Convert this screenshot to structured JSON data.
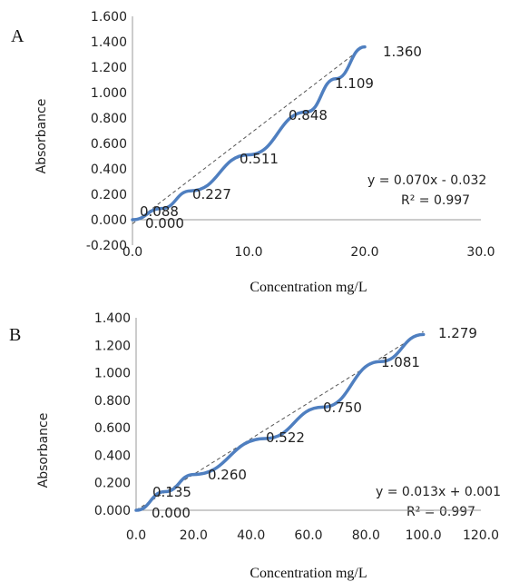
{
  "chart_data": [
    {
      "type": "line",
      "panel_label": "A",
      "xlabel": "Concentration mg/L",
      "ylabel": "Absorbance",
      "x": [
        0.0,
        2.5,
        5.0,
        10.0,
        15.0,
        17.5,
        20.0
      ],
      "values": [
        0.0,
        0.088,
        0.227,
        0.511,
        0.848,
        1.109,
        1.36
      ],
      "data_labels": [
        "0.000",
        "0.088",
        "0.227",
        "0.511",
        "0.848",
        "1.109",
        "1.360"
      ],
      "xlim": [
        0,
        30
      ],
      "ylim": [
        -0.2,
        1.6
      ],
      "xticks": [
        0,
        10,
        20,
        30
      ],
      "xtick_labels": [
        "0.0",
        "10.0",
        "20.0",
        "30.0"
      ],
      "yticks": [
        -0.2,
        0.0,
        0.2,
        0.4,
        0.6,
        0.8,
        1.0,
        1.2,
        1.4,
        1.6
      ],
      "ytick_labels": [
        "-0.200",
        "0.000",
        "0.200",
        "0.400",
        "0.600",
        "0.800",
        "1.000",
        "1.200",
        "1.400",
        "1.600"
      ],
      "trendline": {
        "slope": 0.07,
        "intercept": -0.032
      },
      "equation": "y = 0.070x - 0.032",
      "r_squared": "R² = 0.997",
      "grid": false
    },
    {
      "type": "line",
      "panel_label": "B",
      "xlabel": "Concentration mg/L",
      "ylabel": "Absorbance",
      "x": [
        0,
        10,
        20,
        45,
        65,
        85,
        100
      ],
      "values": [
        0.0,
        0.135,
        0.26,
        0.522,
        0.75,
        1.081,
        1.279
      ],
      "data_labels": [
        "0.000",
        "0.135",
        "0.260",
        "0.522",
        "0.750",
        "1.081",
        "1.279"
      ],
      "xlim": [
        0,
        120
      ],
      "ylim": [
        0,
        1.4
      ],
      "xticks": [
        0,
        20,
        40,
        60,
        80,
        100,
        120
      ],
      "xtick_labels": [
        "0.0",
        "20.0",
        "40.0",
        "60.0",
        "80.0",
        "100.0",
        "120.0"
      ],
      "yticks": [
        0,
        0.2,
        0.4,
        0.6,
        0.8,
        1.0,
        1.2,
        1.4
      ],
      "ytick_labels": [
        "0.000",
        "0.200",
        "0.400",
        "0.600",
        "0.800",
        "1.000",
        "1.200",
        "1.400"
      ],
      "trendline": {
        "slope": 0.013,
        "intercept": 0.001
      },
      "equation": "y = 0.013x + 0.001",
      "r_squared": "R² = 0.997",
      "grid": false
    }
  ]
}
